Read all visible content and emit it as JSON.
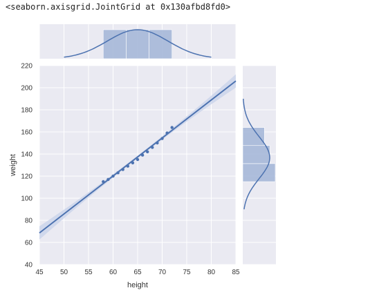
{
  "output_repr": "<seaborn.axisgrid.JointGrid at 0x130afbd8fd0>",
  "colors": {
    "axes_bg": "#EAEAF2",
    "grid": "#FFFFFF",
    "series": "#4C72B0",
    "hist_fill": "#A6B8D8",
    "ci_band": "#C9D3EA"
  },
  "chart_data": {
    "type": "scatter",
    "subtype": "jointplot-reg",
    "xlabel": "height",
    "ylabel": "weight",
    "xlim": [
      45,
      85
    ],
    "ylim": [
      40,
      220
    ],
    "xticks": [
      45,
      50,
      55,
      60,
      65,
      70,
      75,
      80,
      85
    ],
    "yticks": [
      40,
      60,
      80,
      100,
      120,
      140,
      160,
      180,
      200,
      220
    ],
    "grid": true,
    "x": [
      58,
      59,
      60,
      61,
      62,
      63,
      64,
      65,
      66,
      67,
      68,
      69,
      70,
      71,
      72
    ],
    "y": [
      115,
      117,
      120,
      123,
      126,
      129,
      132,
      135,
      139,
      142,
      146,
      150,
      154,
      159,
      164
    ],
    "regression_line": {
      "x": [
        45,
        85
      ],
      "y": [
        68.6,
        206.1
      ]
    },
    "marginal_x_hist": {
      "bins": [
        58,
        62.67,
        67.33,
        72
      ],
      "counts": [
        5,
        5,
        5
      ]
    },
    "marginal_y_hist": {
      "bins": [
        115,
        131.33,
        147.67,
        164
      ],
      "counts": [
        6,
        5,
        4
      ]
    },
    "marginal_x_kde_range": [
      50,
      80
    ],
    "marginal_y_kde_range": [
      90,
      190
    ]
  }
}
